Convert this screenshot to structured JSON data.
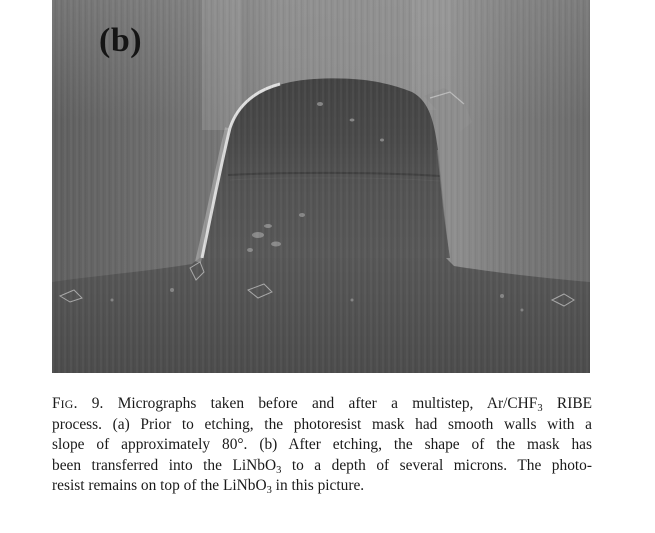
{
  "figure": {
    "panel_label": "(b)"
  },
  "caption": {
    "fig_prefix_F": "F",
    "fig_prefix_rest": "IG",
    "fig_number": ". 9.",
    "lines": [
      [
        "Micrographs taken before and after a multistep, Ar/CHF",
        "3",
        " RIBE"
      ],
      [
        "process. (a) Prior to etching, the photoresist mask had smooth walls with a"
      ],
      [
        "slope of approximately 80°. (b) After etching, the shape of the mask has"
      ],
      [
        "been transferred into the LiNbO",
        "3",
        " to a depth of several microns. The photo-"
      ],
      [
        "resist remains on top of the LiNbO",
        "3",
        " in this picture."
      ]
    ]
  }
}
